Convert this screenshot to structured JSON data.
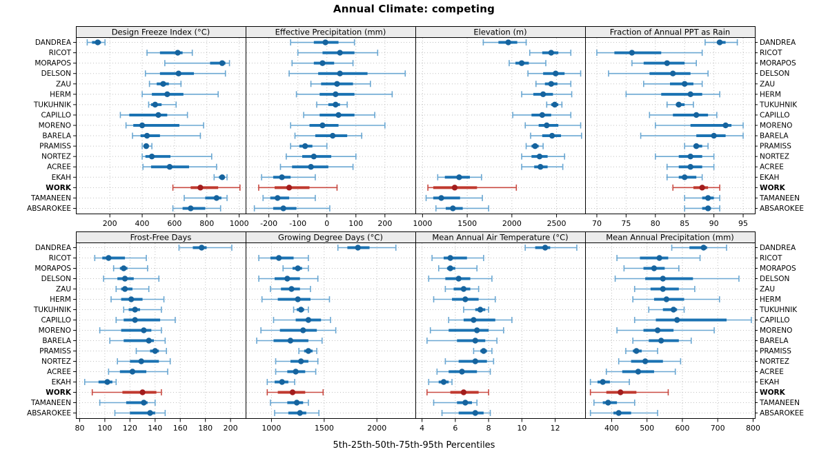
{
  "title": "Annual Climate: competing",
  "caption": "5th-25th-50th-75th-95th Percentiles",
  "percentiles": [
    "5th",
    "25th",
    "50th",
    "75th",
    "95th"
  ],
  "sites": [
    "DANDREA",
    "RICOT",
    "MORAPOS",
    "DELSON",
    "ZAU",
    "HERM",
    "TUKUHNIK",
    "CAPILLO",
    "MORENO",
    "BARELA",
    "PRAMISS",
    "NORTEZ",
    "ACREE",
    "EKAH",
    "WORK",
    "TAMANEEN",
    "ABSAROKEE"
  ],
  "highlight_site": "WORK",
  "colors": {
    "blue": "#1a72b2",
    "blue_light": "#6aa7d2",
    "blue_dot": "#15639e",
    "red": "#c0392f",
    "red_light": "#c94a42",
    "red_dot": "#a21d1d",
    "strip_bg": "#ececec",
    "grid": "#bfbfbf",
    "border": "#000000"
  },
  "chart_data": [
    {
      "type": "interval-dotplot",
      "title": "Design Freeze Index (°C)",
      "xlim": [
        -10,
        1040
      ],
      "ticks": [
        200,
        400,
        600,
        800,
        1000
      ],
      "values": [
        [
          60,
          90,
          125,
          145,
          170
        ],
        [
          430,
          510,
          620,
          650,
          710
        ],
        [
          540,
          820,
          895,
          915,
          940
        ],
        [
          420,
          510,
          625,
          720,
          915
        ],
        [
          445,
          490,
          530,
          565,
          640
        ],
        [
          400,
          460,
          555,
          655,
          870
        ],
        [
          440,
          455,
          480,
          520,
          610
        ],
        [
          265,
          320,
          500,
          555,
          680
        ],
        [
          300,
          345,
          400,
          630,
          780
        ],
        [
          340,
          390,
          430,
          510,
          760
        ],
        [
          400,
          415,
          425,
          440,
          460
        ],
        [
          400,
          420,
          460,
          575,
          830
        ],
        [
          405,
          455,
          570,
          690,
          860
        ],
        [
          845,
          875,
          895,
          910,
          925
        ],
        [
          590,
          700,
          760,
          870,
          1005
        ],
        [
          660,
          790,
          860,
          890,
          925
        ],
        [
          590,
          650,
          700,
          790,
          885
        ]
      ]
    },
    {
      "type": "interval-dotplot",
      "title": "Effective Precipitation (mm)",
      "xlim": [
        -280,
        305
      ],
      "ticks": [
        -200,
        -100,
        0,
        100,
        200
      ],
      "values": [
        [
          -125,
          -45,
          -5,
          40,
          95
        ],
        [
          -100,
          -15,
          45,
          95,
          175
        ],
        [
          -120,
          -45,
          -15,
          25,
          90
        ],
        [
          -130,
          -30,
          45,
          140,
          270
        ],
        [
          -55,
          -20,
          35,
          90,
          150
        ],
        [
          -105,
          -25,
          30,
          95,
          225
        ],
        [
          -35,
          5,
          30,
          45,
          70
        ],
        [
          -80,
          -25,
          40,
          95,
          165
        ],
        [
          -125,
          -60,
          -15,
          40,
          200
        ],
        [
          -110,
          -40,
          20,
          70,
          120
        ],
        [
          -125,
          -95,
          -75,
          -50,
          0
        ],
        [
          -140,
          -85,
          -45,
          15,
          100
        ],
        [
          -160,
          -120,
          -55,
          5,
          90
        ],
        [
          -225,
          -185,
          -155,
          -125,
          -40
        ],
        [
          -235,
          -180,
          -130,
          -60,
          35
        ],
        [
          -220,
          -195,
          -170,
          -130,
          -40
        ],
        [
          -250,
          -185,
          -150,
          -105,
          10
        ]
      ]
    },
    {
      "type": "interval-dotplot",
      "title": "Elevation (m)",
      "xlim": [
        920,
        2820
      ],
      "ticks": [
        1000,
        1500,
        2000,
        2500
      ],
      "values": [
        [
          1680,
          1850,
          1960,
          2060,
          2160
        ],
        [
          2200,
          2340,
          2440,
          2520,
          2660
        ],
        [
          1970,
          2040,
          2110,
          2190,
          2380
        ],
        [
          2180,
          2350,
          2490,
          2590,
          2770
        ],
        [
          2270,
          2370,
          2440,
          2510,
          2660
        ],
        [
          2110,
          2240,
          2350,
          2460,
          2670
        ],
        [
          2390,
          2440,
          2480,
          2520,
          2560
        ],
        [
          2010,
          2220,
          2340,
          2440,
          2660
        ],
        [
          2150,
          2300,
          2390,
          2520,
          2770
        ],
        [
          2210,
          2340,
          2450,
          2550,
          2780
        ],
        [
          2160,
          2220,
          2260,
          2300,
          2350
        ],
        [
          2110,
          2220,
          2310,
          2400,
          2590
        ],
        [
          2110,
          2250,
          2320,
          2400,
          2570
        ],
        [
          1170,
          1250,
          1410,
          1530,
          1660
        ],
        [
          1060,
          1120,
          1360,
          1610,
          2050
        ],
        [
          1040,
          1120,
          1210,
          1420,
          1670
        ],
        [
          1150,
          1260,
          1340,
          1450,
          1740
        ]
      ]
    },
    {
      "type": "interval-dotplot",
      "title": "Fraction of Annual PPT as Rain",
      "xlim": [
        68,
        97
      ],
      "ticks": [
        70,
        75,
        80,
        85,
        90,
        95
      ],
      "values": [
        [
          88.5,
          90.5,
          91,
          92,
          94
        ],
        [
          70,
          73,
          76,
          81,
          88
        ],
        [
          76,
          78,
          82,
          85,
          87
        ],
        [
          72,
          79,
          83,
          86,
          89
        ],
        [
          78,
          82.5,
          85,
          86.5,
          88
        ],
        [
          75,
          81,
          86,
          88,
          91
        ],
        [
          82,
          83.5,
          84,
          85,
          86.5
        ],
        [
          79,
          83,
          87,
          89,
          90.5
        ],
        [
          80,
          86,
          92,
          93,
          95
        ],
        [
          77.5,
          87,
          90,
          92,
          95
        ],
        [
          85,
          86.5,
          87,
          88,
          89
        ],
        [
          80,
          84,
          86,
          88,
          90
        ],
        [
          82,
          84,
          86,
          88,
          90
        ],
        [
          82,
          84,
          85,
          87,
          88
        ],
        [
          83,
          86.5,
          88,
          89,
          91
        ],
        [
          85,
          88,
          89,
          90,
          91
        ],
        [
          85,
          88,
          89,
          89.5,
          91
        ]
      ]
    },
    {
      "type": "interval-dotplot",
      "title": "Frost-Free Days",
      "xlim": [
        77,
        212
      ],
      "ticks": [
        80,
        100,
        120,
        140,
        160,
        180,
        200
      ],
      "values": [
        [
          159,
          170,
          177,
          181,
          201
        ],
        [
          92,
          98,
          103,
          116,
          133
        ],
        [
          107,
          112,
          115,
          118,
          134
        ],
        [
          99,
          110,
          116,
          123,
          143
        ],
        [
          109,
          113,
          116,
          122,
          135
        ],
        [
          105,
          113,
          121,
          130,
          147
        ],
        [
          115,
          119,
          124,
          128,
          145
        ],
        [
          109,
          115,
          124,
          144,
          156
        ],
        [
          96,
          113,
          131,
          137,
          145
        ],
        [
          104,
          115,
          135,
          139,
          148
        ],
        [
          125,
          136,
          140,
          143,
          149
        ],
        [
          110,
          120,
          129,
          143,
          152
        ],
        [
          103,
          112,
          122,
          133,
          150
        ],
        [
          84,
          95,
          102,
          106,
          109
        ],
        [
          90,
          114,
          130,
          141,
          145
        ],
        [
          96,
          117,
          131,
          134,
          140
        ],
        [
          108,
          120,
          136,
          140,
          148
        ]
      ]
    },
    {
      "type": "interval-dotplot",
      "title": "Growing Degree Days (°C)",
      "xlim": [
        755,
        2365
      ],
      "ticks": [
        1000,
        1500,
        2000
      ],
      "values": [
        [
          1630,
          1720,
          1820,
          1930,
          2180
        ],
        [
          880,
          990,
          1070,
          1210,
          1350
        ],
        [
          1110,
          1200,
          1250,
          1290,
          1350
        ],
        [
          880,
          1030,
          1150,
          1270,
          1440
        ],
        [
          990,
          1090,
          1190,
          1270,
          1370
        ],
        [
          910,
          1060,
          1250,
          1370,
          1550
        ],
        [
          1210,
          1240,
          1280,
          1310,
          1350
        ],
        [
          1020,
          1230,
          1350,
          1470,
          1560
        ],
        [
          900,
          1080,
          1300,
          1430,
          1610
        ],
        [
          860,
          1020,
          1180,
          1350,
          1480
        ],
        [
          1260,
          1310,
          1350,
          1390,
          1430
        ],
        [
          1040,
          1180,
          1280,
          1350,
          1440
        ],
        [
          1040,
          1150,
          1230,
          1320,
          1420
        ],
        [
          960,
          1030,
          1100,
          1160,
          1220
        ],
        [
          960,
          1060,
          1200,
          1320,
          1490
        ],
        [
          990,
          1150,
          1240,
          1300,
          1350
        ],
        [
          1030,
          1160,
          1270,
          1330,
          1450
        ]
      ]
    },
    {
      "type": "interval-dotplot",
      "title": "Mean Annual Air Temperature (°C)",
      "xlim": [
        3.6,
        13.8
      ],
      "ticks": [
        4,
        6,
        8,
        10,
        12
      ],
      "values": [
        [
          10.2,
          10.8,
          11.4,
          11.7,
          13.3
        ],
        [
          4.6,
          5.3,
          5.7,
          6.7,
          7.7
        ],
        [
          5.0,
          5.5,
          5.7,
          6.0,
          7.3
        ],
        [
          4.4,
          5.4,
          6.2,
          6.9,
          8.2
        ],
        [
          5.4,
          5.9,
          6.5,
          6.9,
          7.4
        ],
        [
          4.7,
          5.8,
          6.6,
          7.4,
          8.4
        ],
        [
          6.5,
          7.2,
          7.5,
          7.8,
          8.0
        ],
        [
          5.6,
          6.5,
          7.1,
          8.4,
          9.4
        ],
        [
          4.5,
          5.6,
          7.3,
          8.0,
          8.9
        ],
        [
          4.3,
          6.1,
          7.2,
          7.8,
          8.5
        ],
        [
          7.1,
          7.5,
          7.7,
          7.9,
          8.2
        ],
        [
          5.4,
          6.2,
          7.2,
          7.9,
          8.3
        ],
        [
          4.9,
          5.6,
          6.4,
          7.3,
          8.1
        ],
        [
          4.4,
          5.0,
          5.3,
          5.6,
          5.8
        ],
        [
          4.3,
          5.7,
          6.5,
          7.4,
          8.0
        ],
        [
          4.7,
          6.1,
          6.6,
          7.0,
          7.3
        ],
        [
          5.2,
          6.2,
          7.2,
          7.7,
          8.1
        ]
      ]
    },
    {
      "type": "interval-dotplot",
      "title": "Mean Annual Precipitation (mm)",
      "xlim": [
        325,
        805
      ],
      "ticks": [
        400,
        500,
        600,
        700,
        800
      ],
      "values": [
        [
          570,
          620,
          660,
          670,
          725
        ],
        [
          415,
          480,
          535,
          560,
          650
        ],
        [
          435,
          490,
          520,
          550,
          590
        ],
        [
          410,
          495,
          545,
          630,
          760
        ],
        [
          465,
          510,
          545,
          590,
          635
        ],
        [
          460,
          520,
          555,
          605,
          705
        ],
        [
          505,
          545,
          575,
          585,
          605
        ],
        [
          465,
          525,
          585,
          725,
          795
        ],
        [
          415,
          490,
          530,
          575,
          690
        ],
        [
          460,
          505,
          540,
          590,
          625
        ],
        [
          440,
          460,
          470,
          485,
          530
        ],
        [
          420,
          455,
          495,
          545,
          595
        ],
        [
          385,
          430,
          475,
          520,
          580
        ],
        [
          340,
          360,
          375,
          395,
          450
        ],
        [
          340,
          385,
          425,
          470,
          560
        ],
        [
          350,
          375,
          390,
          415,
          465
        ],
        [
          340,
          405,
          420,
          455,
          530
        ]
      ]
    }
  ]
}
